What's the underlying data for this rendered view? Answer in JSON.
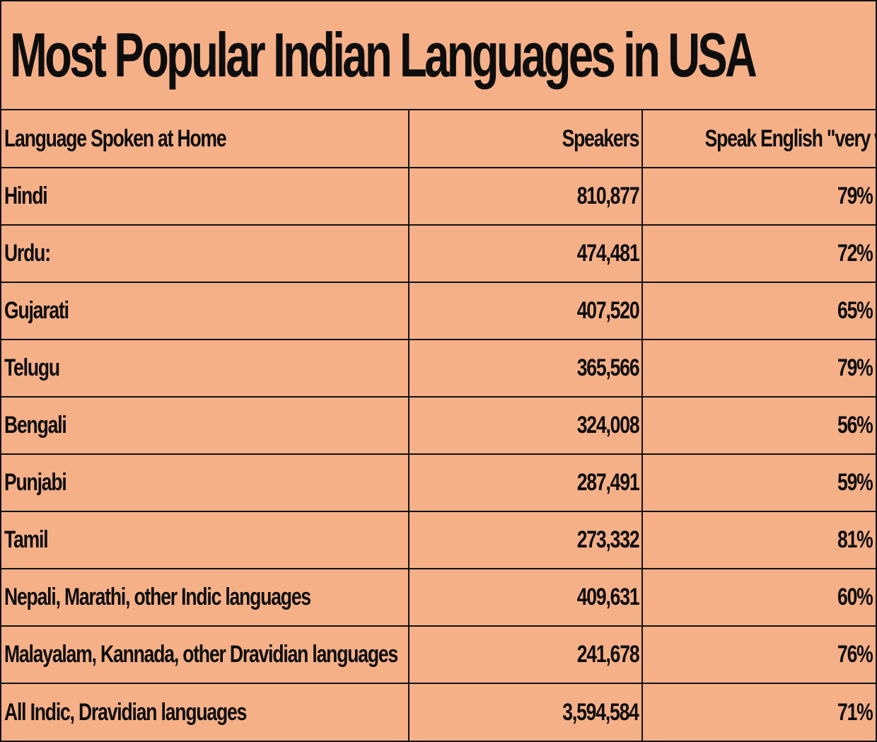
{
  "title": "Most Popular Indian Languages in USA",
  "chart_data": {
    "type": "table",
    "title": "Most Popular Indian Languages in USA",
    "columns": [
      "Language Spoken at Home",
      "Speakers",
      "Speak English \"very well\""
    ],
    "rows": [
      [
        "Hindi",
        "810,877",
        "79%"
      ],
      [
        "Urdu:",
        "474,481",
        "72%"
      ],
      [
        "Gujarati",
        "407,520",
        "65%"
      ],
      [
        "Telugu",
        "365,566",
        "79%"
      ],
      [
        "Bengali",
        "324,008",
        "56%"
      ],
      [
        "Punjabi",
        "287,491",
        "59%"
      ],
      [
        "Tamil",
        "273,332",
        "81%"
      ],
      [
        "Nepali, Marathi, other Indic languages",
        "409,631",
        "60%"
      ],
      [
        "Malayalam, Kannada, other Dravidian languages",
        "241,678",
        "76%"
      ],
      [
        "All Indic, Dravidian languages",
        "3,594,584",
        "71%"
      ]
    ]
  },
  "colors": {
    "background": "#f5b088",
    "border": "#111111",
    "text": "#0d0d0d"
  }
}
